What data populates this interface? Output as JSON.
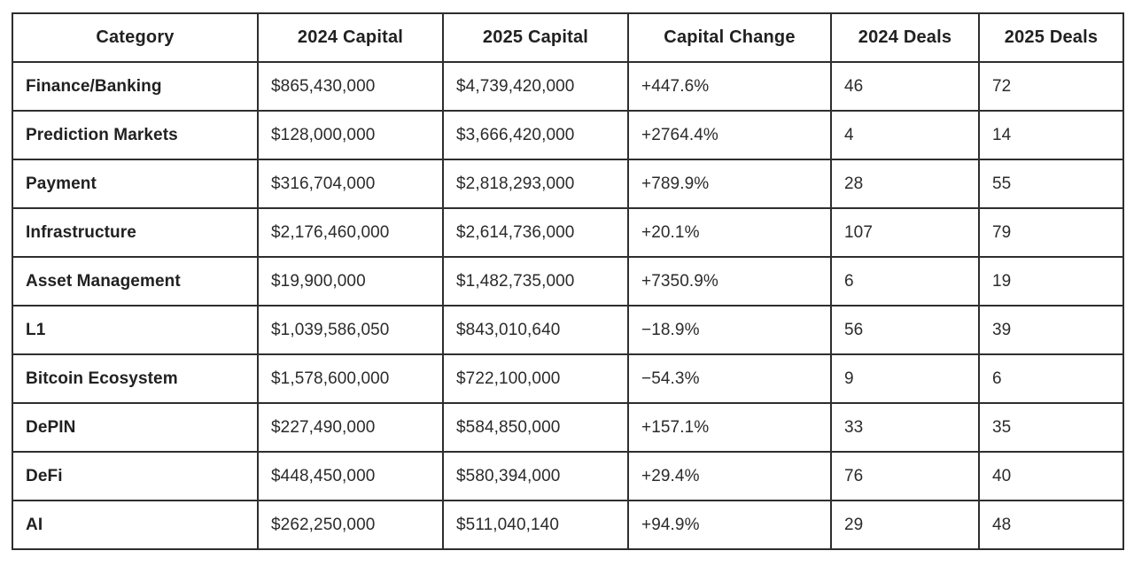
{
  "chart_data": {
    "type": "table",
    "columns": [
      "Category",
      "2024 Capital",
      "2025 Capital",
      "Capital Change",
      "2024 Deals",
      "2025 Deals"
    ],
    "rows": [
      [
        "Finance/Banking",
        "$865,430,000",
        "$4,739,420,000",
        "+447.6%",
        "46",
        "72"
      ],
      [
        "Prediction Markets",
        "$128,000,000",
        "$3,666,420,000",
        "+2764.4%",
        "4",
        "14"
      ],
      [
        "Payment",
        "$316,704,000",
        "$2,818,293,000",
        "+789.9%",
        "28",
        "55"
      ],
      [
        "Infrastructure",
        "$2,176,460,000",
        "$2,614,736,000",
        "+20.1%",
        "107",
        "79"
      ],
      [
        "Asset Management",
        "$19,900,000",
        "$1,482,735,000",
        "+7350.9%",
        "6",
        "19"
      ],
      [
        "L1",
        "$1,039,586,050",
        "$843,010,640",
        "−18.9%",
        "56",
        "39"
      ],
      [
        "Bitcoin Ecosystem",
        "$1,578,600,000",
        "$722,100,000",
        "−54.3%",
        "9",
        "6"
      ],
      [
        "DePIN",
        "$227,490,000",
        "$584,850,000",
        "+157.1%",
        "33",
        "35"
      ],
      [
        "DeFi",
        "$448,450,000",
        "$580,394,000",
        "+29.4%",
        "76",
        "40"
      ],
      [
        "AI",
        "$262,250,000",
        "$511,040,140",
        "+94.9%",
        "29",
        "48"
      ]
    ],
    "title": "",
    "legend": null,
    "grid": true
  },
  "colors": {
    "border": "#2e2e2e",
    "header_text": "#212121",
    "cell_text": "#2b2b2b",
    "background": "#ffffff"
  }
}
